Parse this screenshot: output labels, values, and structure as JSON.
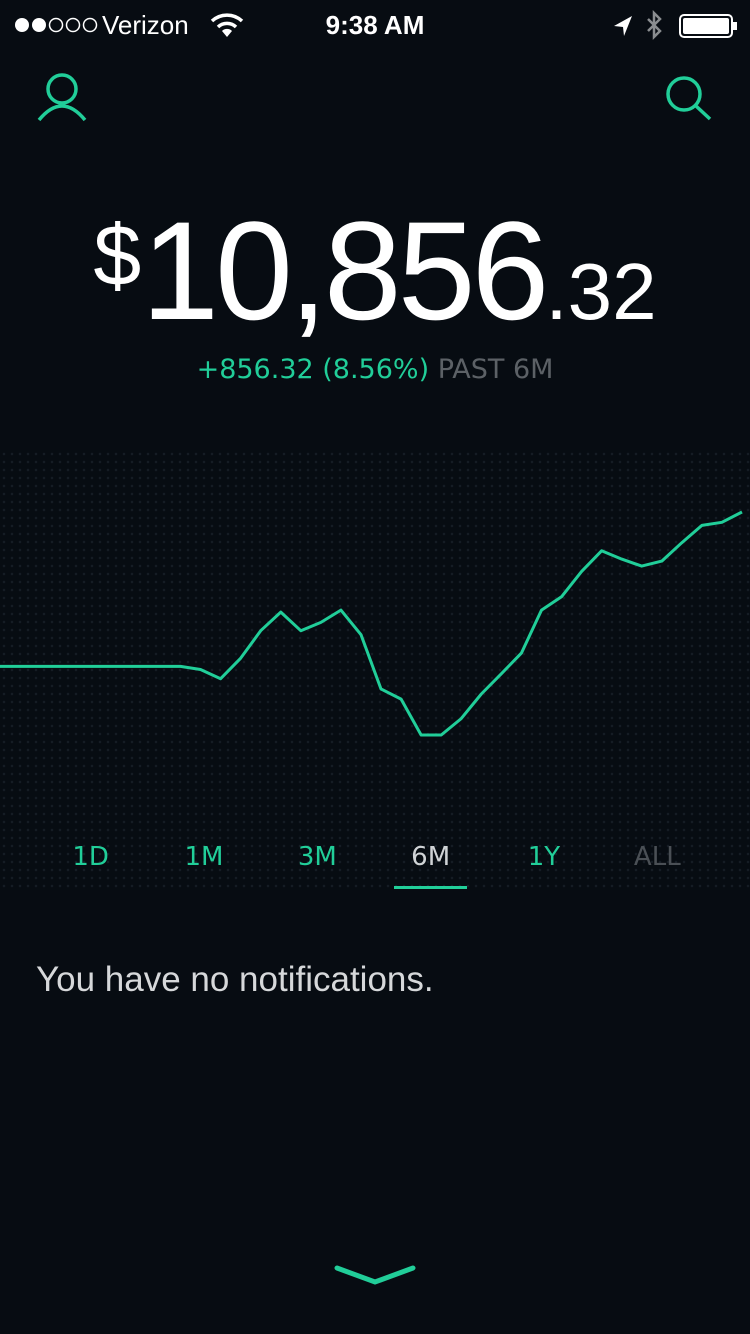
{
  "status_bar": {
    "carrier": "Verizon",
    "time": "9:38 AM"
  },
  "balance": {
    "currency": "$",
    "whole": "10,856",
    "cents": ".32"
  },
  "change": {
    "amount": "+856.32 (8.56%)",
    "period": "PAST 6M"
  },
  "chart_data": {
    "type": "line",
    "color": "#21ce99",
    "values": [
      10000,
      10000,
      10000,
      10000,
      10000,
      10000,
      10000,
      10000,
      10000,
      10000,
      9983,
      9932,
      10045,
      10198,
      10301,
      10198,
      10244,
      10312,
      10176,
      9875,
      9819,
      9620,
      9620,
      9711,
      9847,
      9960,
      10074,
      10312,
      10386,
      10527,
      10641,
      10595,
      10556,
      10584,
      10686,
      10782,
      10799,
      10856
    ]
  },
  "tabs": [
    "1D",
    "1M",
    "3M",
    "6M",
    "1Y",
    "ALL"
  ],
  "selected_tab": 3,
  "notifications": {
    "message": "You have no notifications."
  }
}
